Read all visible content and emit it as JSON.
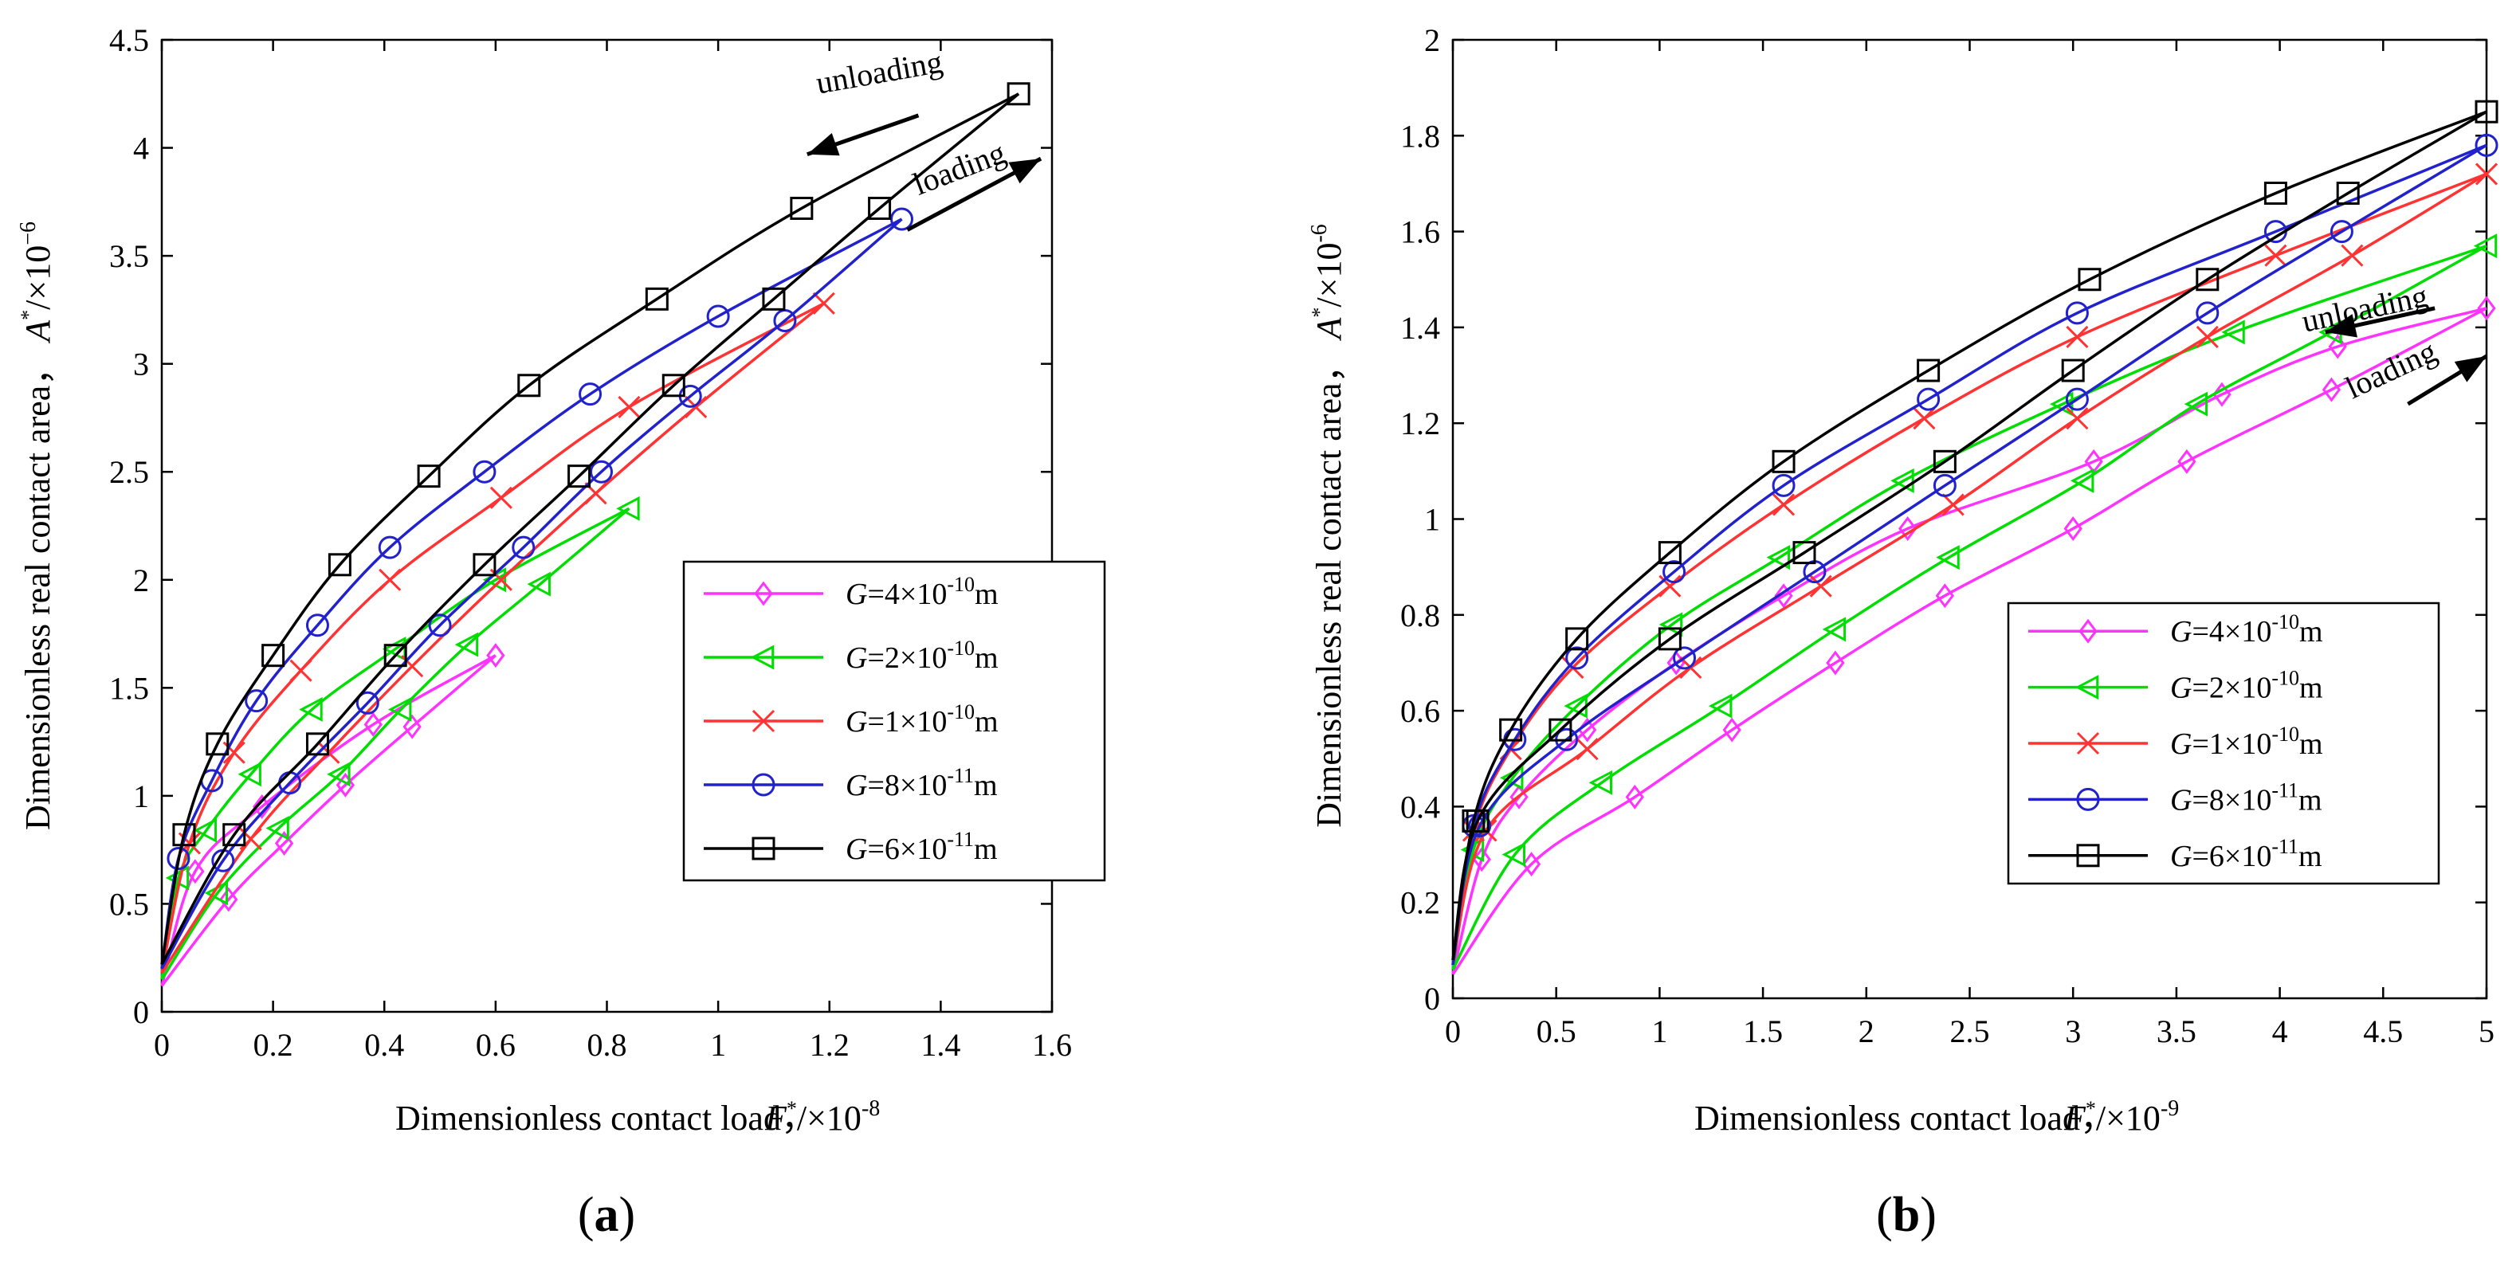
{
  "chart_data": [
    {
      "type": "line",
      "panel_label": "a",
      "xlabel": "Dimensionless contact load，",
      "xlabel_sym": "F",
      "xlabel_unit": "/×10",
      "xlabel_exp": "-8",
      "ylabel": "Dimensionless real contact area，",
      "ylabel_sym": "A",
      "ylabel_unit": "/×10",
      "ylabel_exp": "−6",
      "xlim": [
        0,
        1.6
      ],
      "ylim": [
        0,
        4.5
      ],
      "xticks": [
        0,
        0.2,
        0.4,
        0.6,
        0.8,
        1,
        1.2,
        1.4,
        1.6
      ],
      "xtick_labels": [
        "0",
        "0.2",
        "0.4",
        "0.6",
        "0.8",
        "1",
        "1.2",
        "1.4",
        "1.6"
      ],
      "yticks": [
        0,
        0.5,
        1,
        1.5,
        2,
        2.5,
        3,
        3.5,
        4,
        4.5
      ],
      "ytick_labels": [
        "0",
        "0.5",
        "1",
        "1.5",
        "2",
        "2.5",
        "3",
        "3.5",
        "4",
        "4.5"
      ],
      "annotations": [
        {
          "text": "unloading",
          "x": 1.18,
          "y": 4.25,
          "angle": -10
        },
        {
          "text": "loading",
          "x": 1.36,
          "y": 3.78,
          "angle": -21
        }
      ],
      "series": [
        {
          "name": "G=4×10-10m",
          "color": "#ff33ff",
          "marker": "diamond",
          "peak": [
            0.6,
            1.65
          ],
          "loading": [
            [
              0.12,
              0.52
            ],
            [
              0.22,
              0.78
            ],
            [
              0.33,
              1.05
            ],
            [
              0.45,
              1.32
            ],
            [
              0.6,
              1.65
            ]
          ],
          "unloading": [
            [
              0.6,
              1.65
            ],
            [
              0.38,
              1.33
            ],
            [
              0.18,
              0.95
            ],
            [
              0.06,
              0.65
            ],
            [
              0,
              0.12
            ]
          ]
        },
        {
          "name": "G=2×10-10m",
          "color": "#00dd00",
          "marker": "triangle-left",
          "peak": [
            0.84,
            2.33
          ],
          "loading": [
            [
              0.1,
              0.55
            ],
            [
              0.21,
              0.85
            ],
            [
              0.32,
              1.1
            ],
            [
              0.43,
              1.4
            ],
            [
              0.55,
              1.7
            ],
            [
              0.68,
              1.98
            ],
            [
              0.84,
              2.33
            ]
          ],
          "unloading": [
            [
              0.84,
              2.33
            ],
            [
              0.6,
              2.0
            ],
            [
              0.42,
              1.68
            ],
            [
              0.27,
              1.4
            ],
            [
              0.16,
              1.1
            ],
            [
              0.08,
              0.84
            ],
            [
              0.03,
              0.62
            ],
            [
              0,
              0.15
            ]
          ]
        },
        {
          "name": "G=1×10-10m",
          "color": "#ff3333",
          "marker": "x",
          "peak": [
            1.19,
            3.28
          ],
          "loading": [
            [
              0.16,
              0.8
            ],
            [
              0.3,
              1.2
            ],
            [
              0.45,
              1.6
            ],
            [
              0.61,
              2.0
            ],
            [
              0.78,
              2.4
            ],
            [
              0.96,
              2.8
            ],
            [
              1.19,
              3.28
            ]
          ],
          "unloading": [
            [
              1.19,
              3.28
            ],
            [
              0.84,
              2.8
            ],
            [
              0.61,
              2.38
            ],
            [
              0.41,
              2.0
            ],
            [
              0.25,
              1.58
            ],
            [
              0.13,
              1.2
            ],
            [
              0.05,
              0.78
            ],
            [
              0,
              0.18
            ]
          ]
        },
        {
          "name": "G=8×10-11m",
          "color": "#2222cc",
          "marker": "circle",
          "peak": [
            1.33,
            3.67
          ],
          "loading": [
            [
              0.11,
              0.7
            ],
            [
              0.23,
              1.06
            ],
            [
              0.37,
              1.43
            ],
            [
              0.5,
              1.79
            ],
            [
              0.65,
              2.15
            ],
            [
              0.79,
              2.5
            ],
            [
              0.95,
              2.85
            ],
            [
              1.12,
              3.2
            ],
            [
              1.33,
              3.67
            ]
          ],
          "unloading": [
            [
              1.33,
              3.67
            ],
            [
              1.0,
              3.22
            ],
            [
              0.77,
              2.86
            ],
            [
              0.58,
              2.5
            ],
            [
              0.41,
              2.15
            ],
            [
              0.28,
              1.79
            ],
            [
              0.17,
              1.44
            ],
            [
              0.09,
              1.07
            ],
            [
              0.03,
              0.71
            ],
            [
              0,
              0.2
            ]
          ]
        },
        {
          "name": "G=6×10-11m",
          "color": "#000000",
          "marker": "square",
          "peak": [
            1.54,
            4.25
          ],
          "loading": [
            [
              0.13,
              0.82
            ],
            [
              0.28,
              1.24
            ],
            [
              0.42,
              1.65
            ],
            [
              0.58,
              2.07
            ],
            [
              0.75,
              2.48
            ],
            [
              0.92,
              2.9
            ],
            [
              1.1,
              3.3
            ],
            [
              1.29,
              3.72
            ],
            [
              1.54,
              4.25
            ]
          ],
          "unloading": [
            [
              1.54,
              4.25
            ],
            [
              1.15,
              3.72
            ],
            [
              0.89,
              3.3
            ],
            [
              0.66,
              2.9
            ],
            [
              0.48,
              2.48
            ],
            [
              0.32,
              2.07
            ],
            [
              0.2,
              1.65
            ],
            [
              0.1,
              1.24
            ],
            [
              0.04,
              0.82
            ],
            [
              0,
              0.22
            ]
          ]
        }
      ]
    },
    {
      "type": "line",
      "panel_label": "b",
      "xlabel": "Dimensionless contact load，",
      "xlabel_sym": "F",
      "xlabel_unit": "/×10",
      "xlabel_exp": "-9",
      "ylabel": "Dimensionless real contact area，",
      "ylabel_sym": "A",
      "ylabel_unit": "/×10",
      "ylabel_exp": "-6",
      "xlim": [
        0,
        5
      ],
      "ylim": [
        0,
        2
      ],
      "xticks": [
        0,
        0.5,
        1,
        1.5,
        2,
        2.5,
        3,
        3.5,
        4,
        4.5,
        5
      ],
      "xtick_labels": [
        "0",
        "0.5",
        "1",
        "1.5",
        "2",
        "2.5",
        "3",
        "3.5",
        "4",
        "4.5",
        "5"
      ],
      "yticks": [
        0,
        0.2,
        0.4,
        0.6,
        0.8,
        1,
        1.2,
        1.4,
        1.6,
        1.8,
        2
      ],
      "ytick_labels": [
        "0",
        "0.2",
        "0.4",
        "0.6",
        "0.8",
        "1",
        "1.2",
        "1.4",
        "1.6",
        "1.8",
        "2"
      ],
      "annotations": [
        {
          "text": "unloading",
          "x": 4.12,
          "y": 1.39,
          "angle": -12
        },
        {
          "text": "loading",
          "x": 4.35,
          "y": 1.25,
          "angle": -25
        }
      ],
      "series": [
        {
          "name": "G=4×10-10m",
          "color": "#ff33ff",
          "marker": "diamond",
          "peak": [
            5,
            1.44
          ],
          "loading": [
            [
              0.38,
              0.28
            ],
            [
              0.88,
              0.42
            ],
            [
              1.35,
              0.56
            ],
            [
              1.85,
              0.7
            ],
            [
              2.38,
              0.84
            ],
            [
              3.0,
              0.98
            ],
            [
              3.55,
              1.12
            ],
            [
              4.25,
              1.27
            ],
            [
              5,
              1.44
            ]
          ],
          "unloading": [
            [
              5,
              1.44
            ],
            [
              4.28,
              1.36
            ],
            [
              3.72,
              1.26
            ],
            [
              3.1,
              1.12
            ],
            [
              2.2,
              0.98
            ],
            [
              1.6,
              0.84
            ],
            [
              1.08,
              0.7
            ],
            [
              0.65,
              0.56
            ],
            [
              0.32,
              0.42
            ],
            [
              0.14,
              0.29
            ],
            [
              0,
              0.05
            ]
          ]
        },
        {
          "name": "G=2×10-10m",
          "color": "#00dd00",
          "marker": "triangle-left",
          "peak": [
            5,
            1.57
          ],
          "loading": [
            [
              0.3,
              0.3
            ],
            [
              0.72,
              0.45
            ],
            [
              1.3,
              0.61
            ],
            [
              1.85,
              0.77
            ],
            [
              2.4,
              0.92
            ],
            [
              3.05,
              1.08
            ],
            [
              3.6,
              1.24
            ],
            [
              4.25,
              1.39
            ],
            [
              5,
              1.57
            ]
          ],
          "unloading": [
            [
              5,
              1.57
            ],
            [
              3.78,
              1.39
            ],
            [
              2.95,
              1.24
            ],
            [
              2.18,
              1.08
            ],
            [
              1.58,
              0.92
            ],
            [
              1.06,
              0.78
            ],
            [
              0.6,
              0.61
            ],
            [
              0.29,
              0.46
            ],
            [
              0.1,
              0.31
            ],
            [
              0,
              0.06
            ]
          ]
        },
        {
          "name": "G=1×10-10m",
          "color": "#ff3333",
          "marker": "x",
          "peak": [
            5,
            1.72
          ],
          "loading": [
            [
              0.16,
              0.35
            ],
            [
              0.65,
              0.52
            ],
            [
              1.15,
              0.69
            ],
            [
              1.78,
              0.86
            ],
            [
              2.42,
              1.03
            ],
            [
              3.02,
              1.21
            ],
            [
              3.65,
              1.38
            ],
            [
              4.35,
              1.55
            ],
            [
              5,
              1.72
            ]
          ],
          "unloading": [
            [
              5,
              1.72
            ],
            [
              3.98,
              1.55
            ],
            [
              3.02,
              1.38
            ],
            [
              2.28,
              1.21
            ],
            [
              1.6,
              1.03
            ],
            [
              1.05,
              0.86
            ],
            [
              0.58,
              0.69
            ],
            [
              0.28,
              0.52
            ],
            [
              0.1,
              0.35
            ],
            [
              0,
              0.07
            ]
          ]
        },
        {
          "name": "G=8×10-11m",
          "color": "#2222cc",
          "marker": "circle",
          "peak": [
            5,
            1.78
          ],
          "loading": [
            [
              0.13,
              0.36
            ],
            [
              0.55,
              0.54
            ],
            [
              1.12,
              0.71
            ],
            [
              1.75,
              0.89
            ],
            [
              2.38,
              1.07
            ],
            [
              3.02,
              1.25
            ],
            [
              3.65,
              1.43
            ],
            [
              4.3,
              1.6
            ],
            [
              5,
              1.78
            ]
          ],
          "unloading": [
            [
              5,
              1.78
            ],
            [
              3.98,
              1.6
            ],
            [
              3.02,
              1.43
            ],
            [
              2.3,
              1.25
            ],
            [
              1.6,
              1.07
            ],
            [
              1.07,
              0.89
            ],
            [
              0.6,
              0.71
            ],
            [
              0.3,
              0.54
            ],
            [
              0.1,
              0.36
            ],
            [
              0,
              0.07
            ]
          ]
        },
        {
          "name": "G=6×10-11m",
          "color": "#000000",
          "marker": "square",
          "peak": [
            5,
            1.85
          ],
          "loading": [
            [
              0.12,
              0.37
            ],
            [
              0.52,
              0.56
            ],
            [
              1.05,
              0.75
            ],
            [
              1.7,
              0.93
            ],
            [
              2.38,
              1.12
            ],
            [
              3.0,
              1.31
            ],
            [
              3.65,
              1.5
            ],
            [
              4.33,
              1.68
            ],
            [
              5,
              1.85
            ]
          ],
          "unloading": [
            [
              5,
              1.85
            ],
            [
              3.98,
              1.68
            ],
            [
              3.08,
              1.5
            ],
            [
              2.3,
              1.31
            ],
            [
              1.6,
              1.12
            ],
            [
              1.05,
              0.93
            ],
            [
              0.6,
              0.75
            ],
            [
              0.28,
              0.56
            ],
            [
              0.1,
              0.37
            ],
            [
              0,
              0.08
            ]
          ]
        }
      ]
    }
  ],
  "legend_entries": [
    {
      "sym": "G",
      "text_a": "=4×10",
      "exp": "-10",
      "text_b": "m"
    },
    {
      "sym": "G",
      "text_a": "=2×10",
      "exp": "-10",
      "text_b": "m"
    },
    {
      "sym": "G",
      "text_a": "=1×10",
      "exp": "-10",
      "text_b": "m"
    },
    {
      "sym": "G",
      "text_a": "=8×10",
      "exp": "-11",
      "text_b": "m"
    },
    {
      "sym": "G",
      "text_a": "=6×10",
      "exp": "-11",
      "text_b": "m"
    }
  ]
}
